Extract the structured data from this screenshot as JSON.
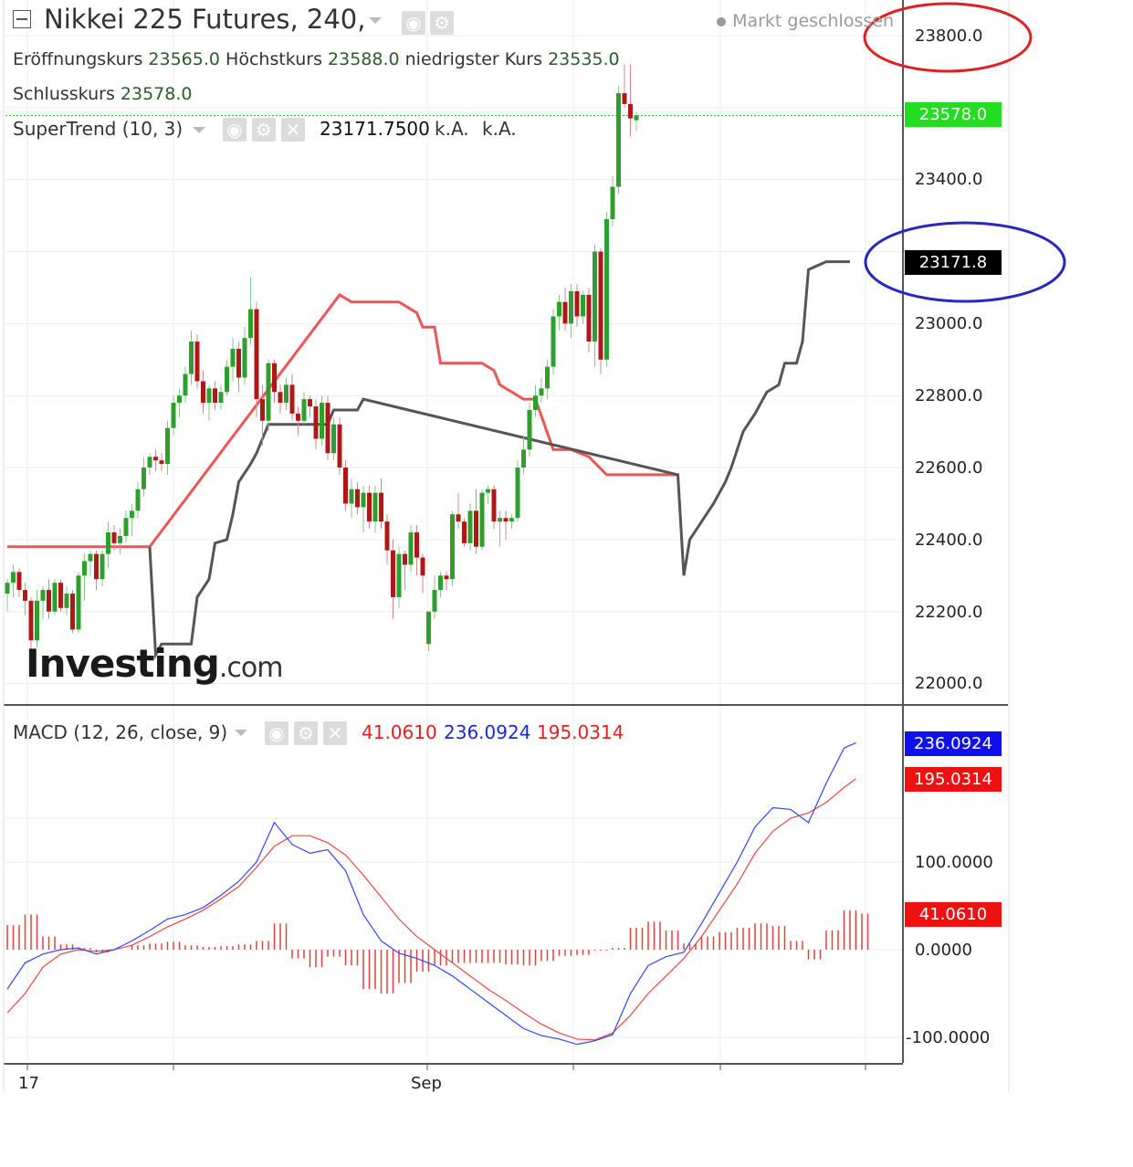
{
  "header": {
    "title": "Nikkei 225 Futures, 240,",
    "status": "Markt geschlossen",
    "open_label": "Eröffnungskurs",
    "open_value": "23565.0",
    "high_label": "Höchstkurs",
    "high_value": "23588.0",
    "low_label": "niedrigster Kurs",
    "low_value": "23535.0",
    "close_label": "Schlusskurs",
    "close_value": "23578.0"
  },
  "supertrend": {
    "label": "SuperTrend (10, 3)",
    "value": "23171.7500",
    "na1": "k.A.",
    "na2": "k.A."
  },
  "macd": {
    "label": "MACD (12, 26, close, 9)",
    "hist_value": "41.0610",
    "macd_value": "236.0924",
    "signal_value": "195.0314"
  },
  "watermark": {
    "brand": "Investing",
    "suffix": ".com"
  },
  "price_axis": [
    "23800.0",
    "23400.0",
    "23000.0",
    "22800.0",
    "22600.0",
    "22400.0",
    "22200.0",
    "22000.0"
  ],
  "macd_axis": [
    "100.0000",
    "0.0000",
    "-100.0000"
  ],
  "badges": {
    "close": "23578.0",
    "supertrend": "23171.8",
    "macd": "236.0924",
    "signal": "195.0314",
    "hist": "41.0610"
  },
  "time_axis": [
    "17",
    "Sep"
  ],
  "colors": {
    "up": "#2e9e2e",
    "down": "#b01818",
    "st_up": "#555555",
    "st_down": "#ee5555",
    "macd": "#3344ff",
    "signal": "#ee4444"
  },
  "chart_data": {
    "type": "candlestick",
    "interval": "240",
    "price_range": [
      21950,
      23900
    ],
    "candles": [
      [
        22250,
        22290,
        22200,
        22280
      ],
      [
        22280,
        22330,
        22240,
        22310
      ],
      [
        22310,
        22320,
        22240,
        22260
      ],
      [
        22260,
        22280,
        22190,
        22230
      ],
      [
        22230,
        22240,
        22080,
        22120
      ],
      [
        22120,
        22260,
        22100,
        22230
      ],
      [
        22230,
        22270,
        22180,
        22260
      ],
      [
        22260,
        22290,
        22180,
        22200
      ],
      [
        22200,
        22290,
        22190,
        22280
      ],
      [
        22280,
        22290,
        22200,
        22210
      ],
      [
        22210,
        22270,
        22190,
        22250
      ],
      [
        22250,
        22260,
        22140,
        22150
      ],
      [
        22150,
        22310,
        22140,
        22300
      ],
      [
        22300,
        22360,
        22230,
        22340
      ],
      [
        22340,
        22370,
        22300,
        22360
      ],
      [
        22360,
        22370,
        22260,
        22290
      ],
      [
        22290,
        22370,
        22270,
        22360
      ],
      [
        22360,
        22450,
        22320,
        22420
      ],
      [
        22420,
        22440,
        22370,
        22390
      ],
      [
        22390,
        22430,
        22360,
        22410
      ],
      [
        22410,
        22480,
        22390,
        22460
      ],
      [
        22460,
        22500,
        22410,
        22480
      ],
      [
        22480,
        22560,
        22460,
        22540
      ],
      [
        22540,
        22630,
        22520,
        22600
      ],
      [
        22600,
        22640,
        22580,
        22630
      ],
      [
        22630,
        22650,
        22590,
        22620
      ],
      [
        22620,
        22640,
        22590,
        22610
      ],
      [
        22610,
        22730,
        22580,
        22710
      ],
      [
        22710,
        22800,
        22690,
        22780
      ],
      [
        22780,
        22820,
        22740,
        22800
      ],
      [
        22800,
        22880,
        22780,
        22860
      ],
      [
        22860,
        22980,
        22830,
        22950
      ],
      [
        22950,
        22970,
        22820,
        22840
      ],
      [
        22840,
        22870,
        22750,
        22780
      ],
      [
        22780,
        22830,
        22730,
        22820
      ],
      [
        22820,
        22840,
        22760,
        22780
      ],
      [
        22780,
        22830,
        22760,
        22810
      ],
      [
        22810,
        22900,
        22800,
        22880
      ],
      [
        22880,
        22960,
        22840,
        22930
      ],
      [
        22930,
        22950,
        22810,
        22850
      ],
      [
        22850,
        22990,
        22830,
        22960
      ],
      [
        22960,
        23130,
        22940,
        23040
      ],
      [
        23040,
        23060,
        22740,
        22790
      ],
      [
        22790,
        22830,
        22660,
        22730
      ],
      [
        22730,
        22900,
        22700,
        22890
      ],
      [
        22890,
        22900,
        22780,
        22810
      ],
      [
        22810,
        22830,
        22750,
        22780
      ],
      [
        22780,
        22850,
        22760,
        22830
      ],
      [
        22830,
        22860,
        22730,
        22750
      ],
      [
        22750,
        22770,
        22690,
        22730
      ],
      [
        22730,
        22810,
        22720,
        22790
      ],
      [
        22790,
        22800,
        22740,
        22770
      ],
      [
        22770,
        22790,
        22650,
        22680
      ],
      [
        22680,
        22800,
        22660,
        22780
      ],
      [
        22780,
        22800,
        22620,
        22640
      ],
      [
        22640,
        22740,
        22620,
        22720
      ],
      [
        22720,
        22740,
        22580,
        22600
      ],
      [
        22600,
        22620,
        22480,
        22500
      ],
      [
        22500,
        22570,
        22460,
        22540
      ],
      [
        22540,
        22560,
        22470,
        22490
      ],
      [
        22490,
        22550,
        22420,
        22530
      ],
      [
        22530,
        22550,
        22430,
        22450
      ],
      [
        22450,
        22550,
        22420,
        22530
      ],
      [
        22530,
        22570,
        22430,
        22450
      ],
      [
        22450,
        22470,
        22330,
        22370
      ],
      [
        22370,
        22400,
        22180,
        22240
      ],
      [
        22240,
        22380,
        22210,
        22360
      ],
      [
        22360,
        22370,
        22260,
        22330
      ],
      [
        22330,
        22440,
        22310,
        22420
      ],
      [
        22420,
        22440,
        22300,
        22350
      ],
      [
        22350,
        22360,
        22250,
        22300
      ],
      [
        22110,
        22200,
        22090,
        22200
      ],
      [
        22200,
        22300,
        22180,
        22260
      ],
      [
        22260,
        22310,
        22240,
        22300
      ],
      [
        22300,
        22310,
        22260,
        22290
      ],
      [
        22290,
        22480,
        22270,
        22470
      ],
      [
        22470,
        22530,
        22430,
        22450
      ],
      [
        22450,
        22460,
        22380,
        22390
      ],
      [
        22390,
        22500,
        22370,
        22480
      ],
      [
        22480,
        22540,
        22360,
        22380
      ],
      [
        22380,
        22540,
        22370,
        22530
      ],
      [
        22530,
        22550,
        22500,
        22540
      ],
      [
        22540,
        22550,
        22430,
        22450
      ],
      [
        22450,
        22480,
        22380,
        22460
      ],
      [
        22460,
        22480,
        22400,
        22450
      ],
      [
        22450,
        22470,
        22430,
        22460
      ],
      [
        22460,
        22620,
        22450,
        22600
      ],
      [
        22600,
        22690,
        22580,
        22650
      ],
      [
        22650,
        22780,
        22630,
        22760
      ],
      [
        22760,
        22830,
        22740,
        22800
      ],
      [
        22800,
        22850,
        22780,
        22820
      ],
      [
        22820,
        22900,
        22790,
        22880
      ],
      [
        22880,
        23040,
        22860,
        23020
      ],
      [
        23020,
        23080,
        22980,
        23060
      ],
      [
        23060,
        23100,
        22980,
        23000
      ],
      [
        23000,
        23110,
        22960,
        23090
      ],
      [
        23090,
        23110,
        22990,
        23020
      ],
      [
        23020,
        23090,
        23000,
        23080
      ],
      [
        23080,
        23100,
        22920,
        22950
      ],
      [
        22950,
        23220,
        22880,
        23200
      ],
      [
        23200,
        23210,
        22860,
        22900
      ],
      [
        22900,
        23310,
        22880,
        23290
      ],
      [
        23290,
        23410,
        23270,
        23380
      ],
      [
        23380,
        23660,
        23360,
        23640
      ],
      [
        23640,
        23720,
        23600,
        23610
      ],
      [
        23610,
        23720,
        23520,
        23570
      ],
      [
        23565,
        23588,
        23535,
        23578
      ]
    ],
    "supertrend_down": [
      [
        0,
        22380
      ],
      [
        24,
        22380
      ],
      [
        56,
        23080
      ],
      [
        58,
        23060
      ],
      [
        66,
        23060
      ],
      [
        69,
        23030
      ],
      [
        70,
        22990
      ],
      [
        72,
        22990
      ],
      [
        73,
        22890
      ],
      [
        80,
        22890
      ],
      [
        82,
        22870
      ],
      [
        83,
        22830
      ],
      [
        87,
        22790
      ],
      [
        89,
        22790
      ],
      [
        92,
        22650
      ],
      [
        95,
        22650
      ],
      [
        98,
        22630
      ],
      [
        101,
        22580
      ],
      [
        113,
        22580
      ]
    ],
    "supertrend_up": [
      [
        24,
        22380
      ],
      [
        25,
        22080
      ],
      [
        26,
        22110
      ],
      [
        31,
        22110
      ],
      [
        32,
        22240
      ],
      [
        34,
        22290
      ],
      [
        35,
        22390
      ],
      [
        37,
        22400
      ],
      [
        38,
        22470
      ],
      [
        39,
        22560
      ],
      [
        41,
        22610
      ],
      [
        42,
        22640
      ],
      [
        44,
        22720
      ],
      [
        54,
        22720
      ],
      [
        55,
        22760
      ],
      [
        59,
        22760
      ],
      [
        60,
        22790
      ],
      [
        113,
        22580
      ],
      [
        114,
        22300
      ],
      [
        115,
        22400
      ],
      [
        117,
        22450
      ],
      [
        119,
        22500
      ],
      [
        121,
        22560
      ],
      [
        122,
        22600
      ],
      [
        124,
        22700
      ],
      [
        126,
        22750
      ],
      [
        128,
        22810
      ],
      [
        130,
        22830
      ],
      [
        131,
        22890
      ],
      [
        133,
        22890
      ],
      [
        134,
        22950
      ],
      [
        135,
        23150
      ],
      [
        138,
        23171.8
      ],
      [
        142,
        23171.8
      ]
    ],
    "macd_range": [
      -115,
      250
    ],
    "macd_line": [
      [
        0,
        -45
      ],
      [
        3,
        -15
      ],
      [
        6,
        -5
      ],
      [
        9,
        0
      ],
      [
        12,
        2
      ],
      [
        15,
        -5
      ],
      [
        18,
        0
      ],
      [
        21,
        10
      ],
      [
        24,
        22
      ],
      [
        27,
        35
      ],
      [
        30,
        40
      ],
      [
        33,
        48
      ],
      [
        36,
        62
      ],
      [
        39,
        78
      ],
      [
        42,
        100
      ],
      [
        45,
        145
      ],
      [
        48,
        120
      ],
      [
        51,
        110
      ],
      [
        54,
        114
      ],
      [
        57,
        90
      ],
      [
        60,
        40
      ],
      [
        63,
        10
      ],
      [
        66,
        -4
      ],
      [
        69,
        -10
      ],
      [
        72,
        -18
      ],
      [
        75,
        -30
      ],
      [
        78,
        -45
      ],
      [
        81,
        -60
      ],
      [
        84,
        -75
      ],
      [
        87,
        -90
      ],
      [
        90,
        -98
      ],
      [
        93,
        -102
      ],
      [
        96,
        -108
      ],
      [
        99,
        -104
      ],
      [
        102,
        -97
      ],
      [
        105,
        -50
      ],
      [
        108,
        -18
      ],
      [
        111,
        -8
      ],
      [
        114,
        -3
      ],
      [
        117,
        30
      ],
      [
        120,
        65
      ],
      [
        123,
        100
      ],
      [
        126,
        140
      ],
      [
        129,
        162
      ],
      [
        132,
        160
      ],
      [
        135,
        145
      ],
      [
        138,
        190
      ],
      [
        141,
        230
      ],
      [
        143,
        236
      ]
    ],
    "signal_line": [
      [
        0,
        -72
      ],
      [
        3,
        -50
      ],
      [
        6,
        -20
      ],
      [
        9,
        -5
      ],
      [
        12,
        0
      ],
      [
        15,
        -2
      ],
      [
        18,
        0
      ],
      [
        21,
        5
      ],
      [
        24,
        15
      ],
      [
        27,
        26
      ],
      [
        30,
        35
      ],
      [
        33,
        45
      ],
      [
        36,
        58
      ],
      [
        39,
        72
      ],
      [
        42,
        94
      ],
      [
        45,
        118
      ],
      [
        48,
        130
      ],
      [
        51,
        130
      ],
      [
        54,
        122
      ],
      [
        57,
        108
      ],
      [
        60,
        85
      ],
      [
        63,
        60
      ],
      [
        66,
        35
      ],
      [
        69,
        15
      ],
      [
        72,
        0
      ],
      [
        75,
        -15
      ],
      [
        78,
        -30
      ],
      [
        81,
        -45
      ],
      [
        84,
        -58
      ],
      [
        87,
        -72
      ],
      [
        90,
        -85
      ],
      [
        93,
        -95
      ],
      [
        96,
        -102
      ],
      [
        99,
        -103
      ],
      [
        102,
        -95
      ],
      [
        105,
        -75
      ],
      [
        108,
        -50
      ],
      [
        111,
        -30
      ],
      [
        114,
        -10
      ],
      [
        117,
        15
      ],
      [
        120,
        45
      ],
      [
        123,
        75
      ],
      [
        126,
        110
      ],
      [
        129,
        135
      ],
      [
        132,
        150
      ],
      [
        135,
        156
      ],
      [
        138,
        168
      ],
      [
        141,
        185
      ],
      [
        143,
        195
      ]
    ],
    "macd_hist": [
      [
        0,
        28
      ],
      [
        3,
        40
      ],
      [
        6,
        15
      ],
      [
        9,
        6
      ],
      [
        12,
        2
      ],
      [
        15,
        -3
      ],
      [
        18,
        0
      ],
      [
        21,
        5
      ],
      [
        24,
        7
      ],
      [
        27,
        9
      ],
      [
        30,
        5
      ],
      [
        33,
        3
      ],
      [
        36,
        4
      ],
      [
        39,
        6
      ],
      [
        42,
        10
      ],
      [
        45,
        30
      ],
      [
        48,
        -10
      ],
      [
        51,
        -20
      ],
      [
        54,
        -8
      ],
      [
        57,
        -18
      ],
      [
        60,
        -45
      ],
      [
        63,
        -50
      ],
      [
        66,
        -38
      ],
      [
        69,
        -25
      ],
      [
        72,
        -18
      ],
      [
        75,
        -15
      ],
      [
        78,
        -15
      ],
      [
        81,
        -15
      ],
      [
        84,
        -17
      ],
      [
        87,
        -18
      ],
      [
        90,
        -13
      ],
      [
        93,
        -7
      ],
      [
        96,
        -6
      ],
      [
        99,
        -1
      ],
      [
        102,
        2
      ],
      [
        105,
        25
      ],
      [
        108,
        32
      ],
      [
        111,
        22
      ],
      [
        114,
        7
      ],
      [
        117,
        15
      ],
      [
        120,
        20
      ],
      [
        123,
        25
      ],
      [
        126,
        30
      ],
      [
        129,
        27
      ],
      [
        132,
        10
      ],
      [
        135,
        -11
      ],
      [
        138,
        22
      ],
      [
        141,
        45
      ],
      [
        143,
        41
      ]
    ]
  }
}
